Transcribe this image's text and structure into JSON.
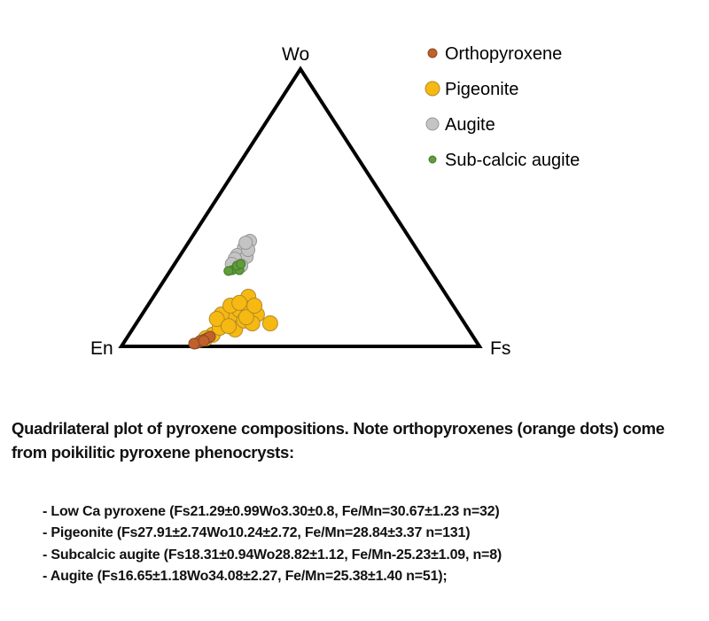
{
  "chart_data": {
    "type": "scatter",
    "subtype": "ternary",
    "vertices": {
      "top": "Wo",
      "left": "En",
      "right": "Fs"
    },
    "coordinates": "[Fs, Wo] in mol%, En = 100 - Fs - Wo",
    "legend_position": "top-right",
    "grid": false,
    "series": [
      {
        "name": "Orthopyroxene",
        "color": "#c0612b",
        "stroke": "#8a4a22",
        "points": [
          [
            20,
            1
          ],
          [
            21,
            1.5
          ],
          [
            21.5,
            2
          ],
          [
            22,
            2.5
          ],
          [
            20.5,
            1.2
          ],
          [
            22.5,
            3
          ],
          [
            23,
            3.5
          ],
          [
            21,
            2
          ],
          [
            19.8,
            1
          ],
          [
            22,
            2
          ]
        ]
      },
      {
        "name": "Pigeonite",
        "color": "#f6b912",
        "stroke": "#b48a28",
        "points": [
          [
            23.4,
            4.2
          ],
          [
            24.1,
            6.7
          ],
          [
            24.6,
            9.3
          ],
          [
            25.1,
            11.5
          ],
          [
            26.4,
            13.1
          ],
          [
            26.5,
            17.9
          ],
          [
            28.5,
            13.7
          ],
          [
            32.1,
            11.5
          ],
          [
            37.4,
            8.3
          ],
          [
            28.7,
            6.1
          ],
          [
            22.2,
            11.5
          ],
          [
            21.7,
            9.9
          ],
          [
            29.6,
            9.3
          ],
          [
            32.4,
            8.3
          ],
          [
            23.1,
            14.7
          ],
          [
            22.1,
            2.9
          ],
          [
            25.1,
            15.7
          ],
          [
            29.6,
            10.5
          ],
          [
            29.8,
            14.7
          ],
          [
            26.3,
            7.3
          ]
        ]
      },
      {
        "name": "Augite",
        "color": "#c4c4c4",
        "stroke": "#979797",
        "points": [
          [
            16.9,
            38
          ],
          [
            16.5,
            35.5
          ],
          [
            15.9,
            32.9
          ],
          [
            17.6,
            30.7
          ],
          [
            18.8,
            32.3
          ],
          [
            15.9,
            31.6
          ],
          [
            18,
            34.8
          ],
          [
            18.9,
            29.1
          ],
          [
            16,
            29.7
          ],
          [
            16,
            37.4
          ]
        ]
      },
      {
        "name": "Sub-calcic augite",
        "color": "#5e9c3c",
        "stroke": "#447a2a",
        "points": [
          [
            17.2,
            27.5
          ],
          [
            19.2,
            27.5
          ],
          [
            17.7,
            29.1
          ],
          [
            16.3,
            27.2
          ],
          [
            18.5,
            29.7
          ]
        ]
      }
    ]
  },
  "caption": "Quadrilateral plot of pyroxene compositions. Note orthopyroxenes (orange dots) come from poikilitic pyroxene phenocrysts:",
  "notes": [
    "- Low Ca pyroxene (Fs21.29±0.99Wo3.30±0.8, Fe/Mn=30.67±1.23 n=32)",
    "- Pigeonite (Fs27.91±2.74Wo10.24±2.72, Fe/Mn=28.84±3.37 n=131)",
    "- Subcalcic augite (Fs18.31±0.94Wo28.82±1.12, Fe/Mn-25.23±1.09, n=8)",
    "- Augite (Fs16.65±1.18Wo34.08±2.27, Fe/Mn=25.38±1.40 n=51);"
  ]
}
